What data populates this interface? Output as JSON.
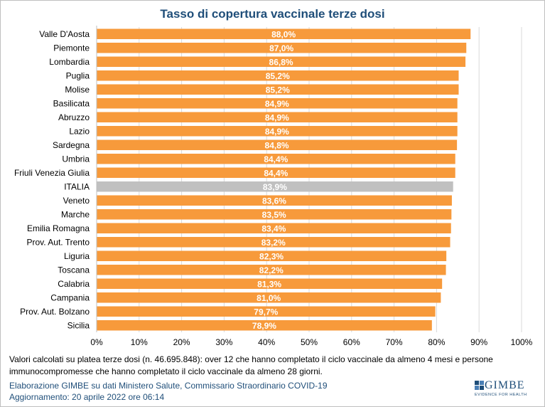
{
  "chart_data": {
    "type": "bar",
    "orientation": "horizontal",
    "title": "Tasso di copertura vaccinale terze dosi",
    "categories": [
      "Valle D'Aosta",
      "Piemonte",
      "Lombardia",
      "Puglia",
      "Molise",
      "Basilicata",
      "Abruzzo",
      "Lazio",
      "Sardegna",
      "Umbria",
      "Friuli Venezia Giulia",
      "ITALIA",
      "Veneto",
      "Marche",
      "Emilia Romagna",
      "Prov. Aut. Trento",
      "Liguria",
      "Toscana",
      "Calabria",
      "Campania",
      "Prov. Aut. Bolzano",
      "Sicilia"
    ],
    "values": [
      88.0,
      87.0,
      86.8,
      85.2,
      85.2,
      84.9,
      84.9,
      84.9,
      84.8,
      84.4,
      84.4,
      83.9,
      83.6,
      83.5,
      83.4,
      83.2,
      82.3,
      82.2,
      81.3,
      81.0,
      79.7,
      78.9
    ],
    "value_labels": [
      "88,0%",
      "87,0%",
      "86,8%",
      "85,2%",
      "85,2%",
      "84,9%",
      "84,9%",
      "84,9%",
      "84,8%",
      "84,4%",
      "84,4%",
      "83,9%",
      "83,6%",
      "83,5%",
      "83,4%",
      "83,2%",
      "82,3%",
      "82,2%",
      "81,3%",
      "81,0%",
      "79,7%",
      "78,9%"
    ],
    "highlight_category": "ITALIA",
    "x_ticks": [
      "0%",
      "10%",
      "20%",
      "30%",
      "40%",
      "50%",
      "60%",
      "70%",
      "80%",
      "90%",
      "100%"
    ],
    "xlim": [
      0,
      100
    ],
    "grid": "vertical",
    "colors": {
      "bar": "#f79a3b",
      "highlight": "#c0c0c0",
      "title": "#1f4e79",
      "label": "#ffffff"
    }
  },
  "note": "Valori calcolati su platea terze dosi (n. 46.695.848): over 12 che hanno completato il ciclo vaccinale da almeno 4 mesi e persone immunocompromesse che hanno completato il ciclo vaccinale da almeno 28 giorni.",
  "source_line1": "Elaborazione GIMBE su dati Ministero Salute, Commissario Straordinario COVID-19",
  "source_line2": "Aggiornamento: 20 aprile 2022 ore 06:14",
  "logo": {
    "name": "GIMBE",
    "tagline": "EVIDENCE FOR HEALTH"
  }
}
